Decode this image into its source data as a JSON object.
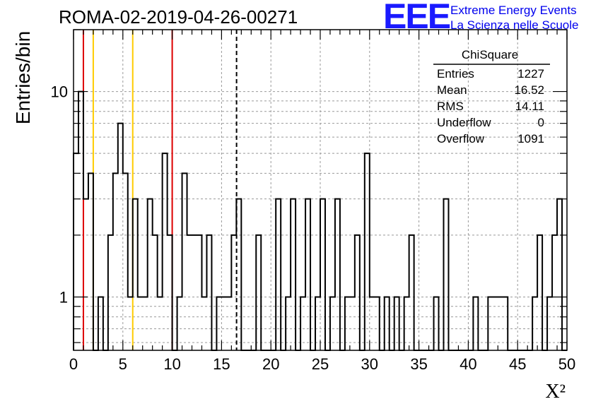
{
  "header": {
    "run_title": "ROMA-02-2019-04-26-00271",
    "logo_letters": "EEE",
    "logo_line1": "Extreme Energy Events",
    "logo_line2": "La Scienza nelle Scuole"
  },
  "colors": {
    "histogram": "#000000",
    "grid": "#999999",
    "red_line": "#dd0000",
    "yellow_line": "#ffcc00",
    "logo": "#1a1aff"
  },
  "stats_box": {
    "title": "ChiSquare",
    "rows": [
      {
        "label": "Entries",
        "value": "1227"
      },
      {
        "label": "Mean",
        "value": "16.52"
      },
      {
        "label": "RMS",
        "value": "14.11"
      },
      {
        "label": "Underflow",
        "value": "0"
      },
      {
        "label": "Overflow",
        "value": "1091"
      }
    ]
  },
  "chart_data": {
    "type": "bar",
    "histogram_style": "step",
    "xlabel": "X²",
    "ylabel": "Entries/bin",
    "xlim": [
      0,
      50
    ],
    "ylim": [
      0.55,
      20
    ],
    "y_scale": "log",
    "grid": true,
    "bin_width": 0.5,
    "x_ticks": [
      "0",
      "5",
      "10",
      "15",
      "20",
      "25",
      "30",
      "35",
      "40",
      "45",
      "50"
    ],
    "y_ticks": [
      {
        "value": 1,
        "label": "1"
      },
      {
        "value": 10,
        "label": "10"
      }
    ],
    "values": [
      5,
      10,
      3,
      4,
      0,
      1,
      0,
      2,
      4,
      7,
      4,
      1,
      3,
      1,
      1,
      3,
      2,
      1,
      5,
      2,
      0,
      1,
      4,
      2,
      2,
      2,
      1,
      2,
      0,
      1,
      1,
      1,
      2,
      3,
      0,
      0,
      0,
      2,
      0,
      0,
      0,
      3,
      0,
      1,
      3,
      0,
      1,
      3,
      0,
      1,
      3,
      0,
      1,
      3,
      0,
      1,
      1,
      2,
      0,
      5,
      1,
      1,
      0,
      1,
      0,
      1,
      0,
      1,
      2,
      0,
      0,
      0,
      0,
      1,
      0,
      3,
      0,
      0,
      0,
      0,
      0,
      1,
      0,
      0,
      1,
      1,
      1,
      1,
      0,
      0,
      0,
      0,
      0,
      1,
      2,
      0,
      1,
      2,
      3,
      0
    ],
    "vertical_lines": [
      {
        "x": 1,
        "color": "red"
      },
      {
        "x": 2,
        "color": "yellow"
      },
      {
        "x": 6,
        "color": "yellow"
      },
      {
        "x": 10,
        "color": "red"
      },
      {
        "x": 16.52,
        "color": "black",
        "style": "dashed"
      }
    ]
  }
}
